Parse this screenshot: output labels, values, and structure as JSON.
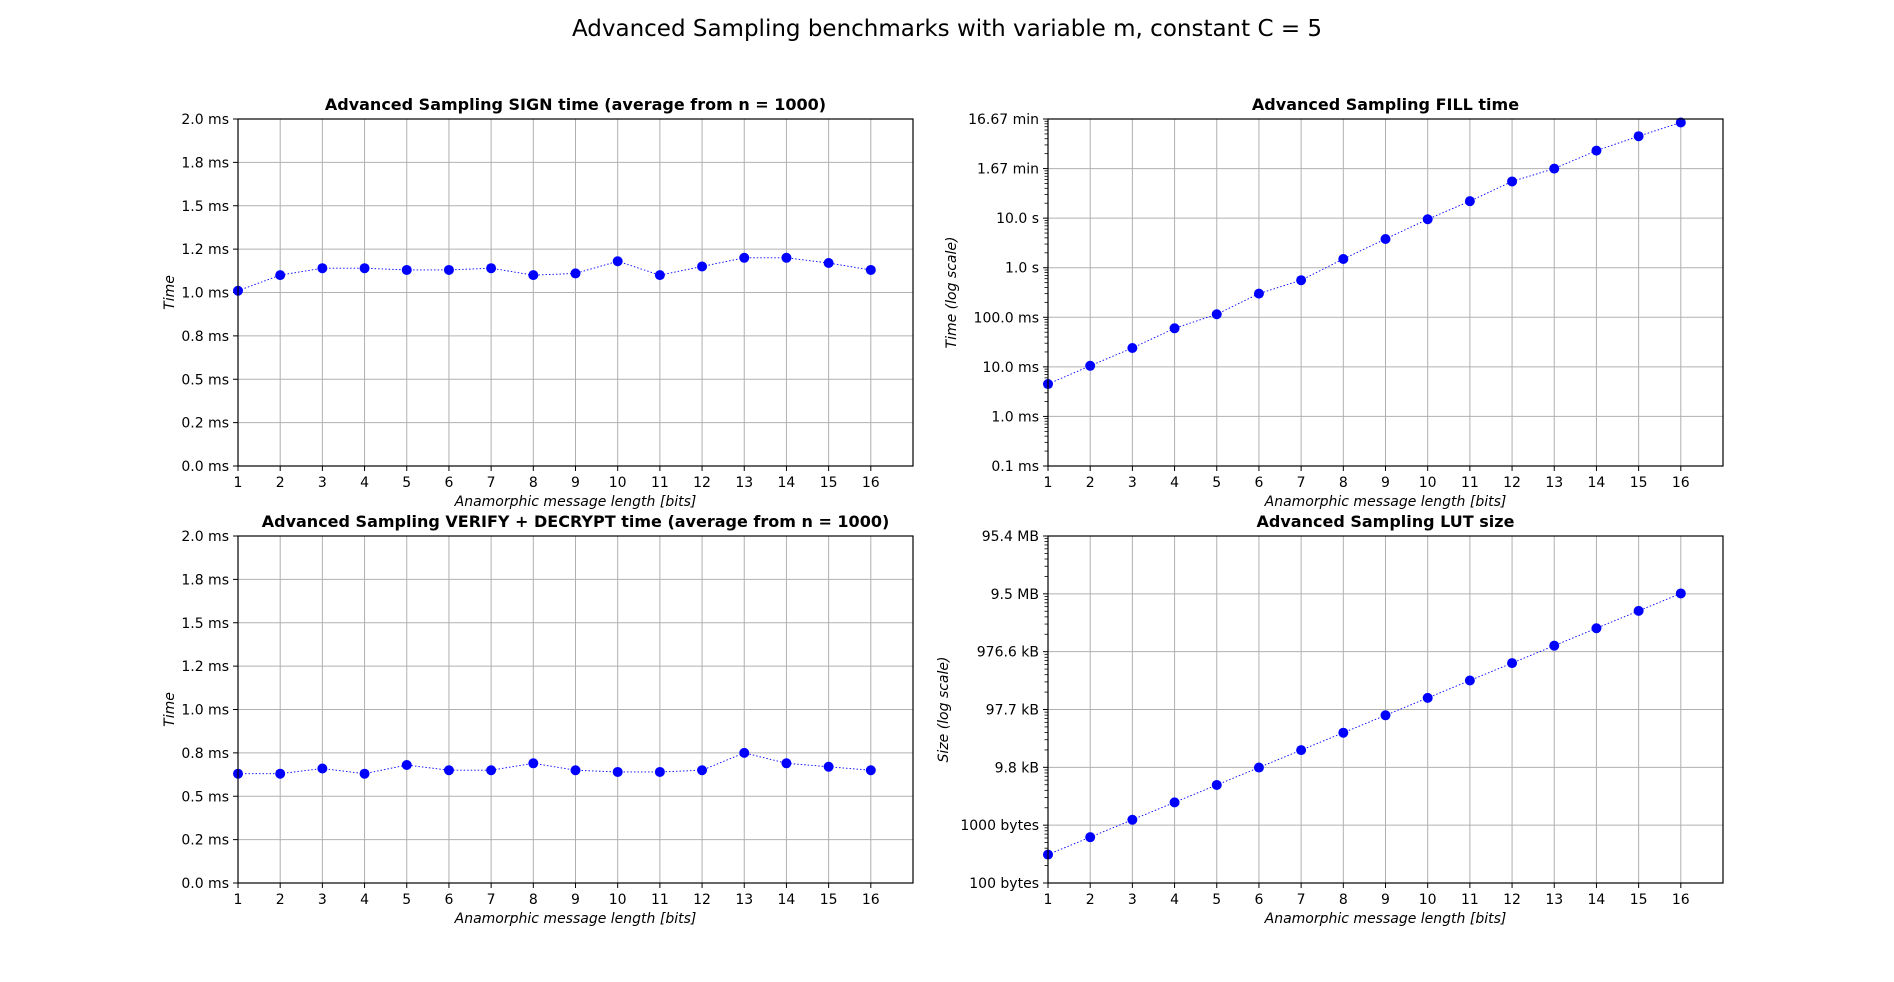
{
  "figure_title": "Advanced Sampling benchmarks with variable m, constant C = 5",
  "chart_data": [
    {
      "type": "line",
      "title": "Advanced Sampling SIGN time (average from n = 1000)",
      "xlabel": "Anamorphic message length [bits]",
      "ylabel": "Time",
      "yscale": "linear",
      "ylim": [
        0,
        2.0
      ],
      "xlim": [
        1,
        17
      ],
      "grid": true,
      "marker_color": "#0000ff",
      "line_style": "dotted",
      "x": [
        1,
        2,
        3,
        4,
        5,
        6,
        7,
        8,
        9,
        10,
        11,
        12,
        13,
        14,
        15,
        16
      ],
      "values_ms": [
        1.01,
        1.1,
        1.14,
        1.14,
        1.13,
        1.13,
        1.14,
        1.1,
        1.11,
        1.18,
        1.1,
        1.15,
        1.2,
        1.2,
        1.17,
        1.13
      ],
      "xticks": [
        "1",
        "2",
        "3",
        "4",
        "5",
        "6",
        "7",
        "8",
        "9",
        "10",
        "11",
        "12",
        "13",
        "14",
        "15",
        "16"
      ],
      "yticks": [
        {
          "v": 0.0,
          "label": "0.0 ms"
        },
        {
          "v": 0.25,
          "label": "0.2 ms"
        },
        {
          "v": 0.5,
          "label": "0.5 ms"
        },
        {
          "v": 0.75,
          "label": "0.8 ms"
        },
        {
          "v": 1.0,
          "label": "1.0 ms"
        },
        {
          "v": 1.25,
          "label": "1.2 ms"
        },
        {
          "v": 1.5,
          "label": "1.5 ms"
        },
        {
          "v": 1.75,
          "label": "1.8 ms"
        },
        {
          "v": 2.0,
          "label": "2.0 ms"
        }
      ]
    },
    {
      "type": "line",
      "title": "Advanced Sampling FILL time",
      "xlabel": "Anamorphic message length [bits]",
      "ylabel": "Time (log scale)",
      "yscale": "log",
      "ylim": [
        0.1,
        1000000
      ],
      "xlim": [
        1,
        17
      ],
      "grid": true,
      "marker_color": "#0000ff",
      "line_style": "dotted",
      "x": [
        1,
        2,
        3,
        4,
        5,
        6,
        7,
        8,
        9,
        10,
        11,
        12,
        13,
        14,
        15,
        16
      ],
      "values_ms": [
        4.5,
        10.5,
        24,
        60,
        115,
        300,
        560,
        1500,
        3800,
        9500,
        22000,
        55000,
        100000,
        230000,
        450000,
        850000
      ],
      "xticks": [
        "1",
        "2",
        "3",
        "4",
        "5",
        "6",
        "7",
        "8",
        "9",
        "10",
        "11",
        "12",
        "13",
        "14",
        "15",
        "16"
      ],
      "yticks": [
        {
          "v": 0.1,
          "label": "0.1 ms"
        },
        {
          "v": 1,
          "label": "1.0 ms"
        },
        {
          "v": 10,
          "label": "10.0 ms"
        },
        {
          "v": 100,
          "label": "100.0 ms"
        },
        {
          "v": 1000,
          "label": "1.0 s"
        },
        {
          "v": 10000,
          "label": "10.0 s"
        },
        {
          "v": 100000,
          "label": "1.67 min"
        },
        {
          "v": 1000000,
          "label": "16.67 min"
        }
      ]
    },
    {
      "type": "line",
      "title": "Advanced Sampling VERIFY + DECRYPT time (average from n = 1000)",
      "xlabel": "Anamorphic message length [bits]",
      "ylabel": "Time",
      "yscale": "linear",
      "ylim": [
        0,
        2.0
      ],
      "xlim": [
        1,
        17
      ],
      "grid": true,
      "marker_color": "#0000ff",
      "line_style": "dotted",
      "x": [
        1,
        2,
        3,
        4,
        5,
        6,
        7,
        8,
        9,
        10,
        11,
        12,
        13,
        14,
        15,
        16
      ],
      "values_ms": [
        0.63,
        0.63,
        0.66,
        0.63,
        0.68,
        0.65,
        0.65,
        0.69,
        0.65,
        0.64,
        0.64,
        0.65,
        0.75,
        0.69,
        0.67,
        0.65
      ],
      "xticks": [
        "1",
        "2",
        "3",
        "4",
        "5",
        "6",
        "7",
        "8",
        "9",
        "10",
        "11",
        "12",
        "13",
        "14",
        "15",
        "16"
      ],
      "yticks": [
        {
          "v": 0.0,
          "label": "0.0 ms"
        },
        {
          "v": 0.25,
          "label": "0.2 ms"
        },
        {
          "v": 0.5,
          "label": "0.5 ms"
        },
        {
          "v": 0.75,
          "label": "0.8 ms"
        },
        {
          "v": 1.0,
          "label": "1.0 ms"
        },
        {
          "v": 1.25,
          "label": "1.2 ms"
        },
        {
          "v": 1.5,
          "label": "1.5 ms"
        },
        {
          "v": 1.75,
          "label": "1.8 ms"
        },
        {
          "v": 2.0,
          "label": "2.0 ms"
        }
      ]
    },
    {
      "type": "line",
      "title": "Advanced Sampling LUT size",
      "xlabel": "Anamorphic message length [bits]",
      "ylabel": "Size (log scale)",
      "yscale": "log",
      "ylim": [
        100,
        100000000
      ],
      "xlim": [
        1,
        17
      ],
      "grid": true,
      "marker_color": "#0000ff",
      "line_style": "dotted",
      "x": [
        1,
        2,
        3,
        4,
        5,
        6,
        7,
        8,
        9,
        10,
        11,
        12,
        13,
        14,
        15,
        16
      ],
      "values_bytes": [
        310,
        620,
        1240,
        2480,
        4960,
        9920,
        19840,
        39680,
        79360,
        158720,
        317440,
        634880,
        1269760,
        2539520,
        5079040,
        10158080
      ],
      "xticks": [
        "1",
        "2",
        "3",
        "4",
        "5",
        "6",
        "7",
        "8",
        "9",
        "10",
        "11",
        "12",
        "13",
        "14",
        "15",
        "16"
      ],
      "yticks": [
        {
          "v": 100,
          "label": "100 bytes"
        },
        {
          "v": 1000,
          "label": "1000 bytes"
        },
        {
          "v": 10000,
          "label": "9.8 kB"
        },
        {
          "v": 100000,
          "label": "97.7 kB"
        },
        {
          "v": 1000000,
          "label": "976.6 kB"
        },
        {
          "v": 10000000,
          "label": "9.5 MB"
        },
        {
          "v": 100000000,
          "label": "95.4 MB"
        }
      ]
    }
  ]
}
